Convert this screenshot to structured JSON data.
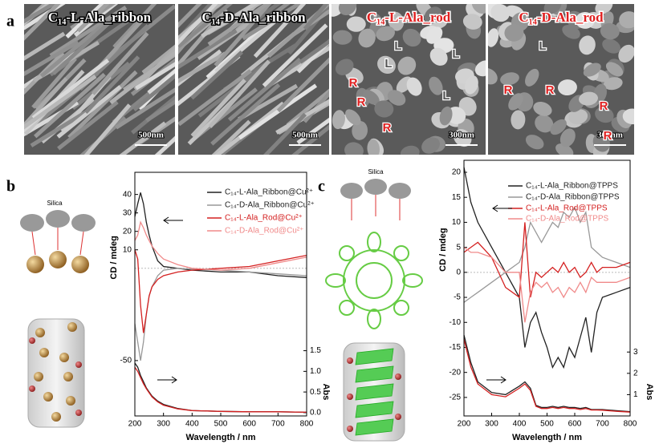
{
  "figure": {
    "panel_labels": [
      "a",
      "b",
      "c"
    ],
    "sem_images": [
      {
        "title": "C₁₄-L-Ala_ribbon",
        "scale": "500nm",
        "labels": []
      },
      {
        "title": "C₁₄-D-Ala_ribbon",
        "scale": "500nm",
        "labels": []
      },
      {
        "title": "C₁₄-L-Ala_rod",
        "scale": "300nm",
        "labels": [
          "L",
          "L",
          "L",
          "L",
          "R",
          "R",
          "R"
        ]
      },
      {
        "title": "C₁₄-D-Ala_rod",
        "scale": "300nm",
        "labels": [
          "L",
          "R",
          "R",
          "R",
          "R"
        ]
      }
    ],
    "silica_labels": [
      "Silica",
      "Silica"
    ]
  },
  "chart_data": [
    {
      "type": "line",
      "xlabel": "Wavelength / nm",
      "ylabel": "CD / mdeg",
      "y2label": "Abs",
      "x": [
        200,
        210,
        220,
        230,
        240,
        250,
        260,
        280,
        300,
        350,
        400,
        500,
        600,
        700,
        800
      ],
      "xlim": [
        200,
        800
      ],
      "xticks": [
        200,
        300,
        400,
        500,
        600,
        700,
        800
      ],
      "ylim": [
        -80,
        52
      ],
      "yticks": [
        40,
        30,
        20,
        10,
        -50
      ],
      "y2lim": [
        -0.08,
        5.82
      ],
      "y2ticks": [
        {
          "value": 0,
          "label": "0.0"
        },
        {
          "value": 0.5,
          "label": "0.5"
        },
        {
          "value": 1,
          "label": "1.0"
        },
        {
          "value": 1.5,
          "label": "1.5"
        }
      ],
      "legend": "upper right",
      "series": [
        {
          "name": "C₁₄-L-Ala_Ribbon@Cu²⁺",
          "color": "#222222",
          "values": [
            28,
            35,
            41,
            35,
            25,
            18,
            12,
            4,
            1,
            0,
            -1,
            -2,
            -2,
            -4,
            -5
          ]
        },
        {
          "name": "C₁₄-D-Ala_Ribbon@Cu²⁺",
          "color": "#999999",
          "values": [
            -30,
            -40,
            -50,
            -40,
            -25,
            -15,
            -10,
            -4,
            -1,
            0,
            -0.5,
            -1,
            -2,
            -3,
            -4
          ]
        },
        {
          "name": "C₁₄-L-Ala_Rod@Cu²⁺",
          "color": "#d42020",
          "values": [
            10,
            5,
            -20,
            -35,
            -25,
            -15,
            -10,
            -6,
            -4,
            -2,
            -1,
            0,
            1,
            4,
            7
          ]
        },
        {
          "name": "C₁₄-D-Ala_Rod@Cu²⁺",
          "color": "#f08a8a",
          "values": [
            15,
            18,
            25,
            22,
            18,
            15,
            12,
            8,
            5,
            2,
            0,
            -1,
            0,
            3,
            6
          ]
        },
        {
          "color": "#222222",
          "axis": "y2",
          "values": [
            1.2,
            1.1,
            0.9,
            0.75,
            0.6,
            0.5,
            0.4,
            0.28,
            0.2,
            0.1,
            0.05,
            0.03,
            0.02,
            0.02,
            0.01
          ]
        },
        {
          "color": "#d42020",
          "axis": "y2",
          "values": [
            1.1,
            1.0,
            0.85,
            0.7,
            0.58,
            0.48,
            0.38,
            0.26,
            0.18,
            0.09,
            0.05,
            0.03,
            0.02,
            0.02,
            0.01
          ]
        }
      ]
    },
    {
      "type": "line",
      "xlabel": "Wavelength / nm",
      "ylabel": "CD / mdeg",
      "y2label": "Abs",
      "x": [
        200,
        225,
        250,
        300,
        350,
        400,
        420,
        440,
        460,
        480,
        500,
        520,
        540,
        560,
        580,
        600,
        620,
        640,
        660,
        680,
        700,
        750,
        800
      ],
      "xlim": [
        200,
        800
      ],
      "xticks": [
        200,
        300,
        400,
        500,
        600,
        700,
        800
      ],
      "ylim": [
        -28.7,
        22.4
      ],
      "yticks": [
        20,
        15,
        10,
        5,
        0,
        -5,
        -10,
        -15,
        -20,
        -25
      ],
      "y2lim": [
        0,
        12
      ],
      "y2ticks": [
        1,
        2,
        3
      ],
      "legend": "upper right",
      "series": [
        {
          "name": "C₁₄-L-Ala_Ribbon@TPPS",
          "color": "#222222",
          "values": [
            21,
            14,
            10,
            5,
            0,
            -5,
            -15,
            -10,
            -8,
            -12,
            -15,
            -19,
            -17,
            -19,
            -15,
            -17,
            -13,
            -9,
            -16,
            -8,
            -5,
            -4,
            -3
          ]
        },
        {
          "name": "C₁₄-D-Ala_Ribbon@TPPS",
          "color": "#999999",
          "values": [
            -6,
            -5,
            -4,
            -2,
            0,
            2,
            5,
            10,
            8,
            6,
            8,
            10,
            9,
            12,
            11,
            13,
            10,
            12,
            5,
            4,
            3,
            2,
            1
          ]
        },
        {
          "name": "C₁₄-L-Ala_Rod@TPPS",
          "color": "#d42020",
          "values": [
            4,
            5,
            6,
            3,
            -3,
            -5,
            10,
            -5,
            0,
            -1,
            0,
            1,
            0,
            2,
            0,
            1,
            -1,
            0,
            2,
            0,
            1,
            1,
            2
          ]
        },
        {
          "name": "C₁₄-D-Ala_Rod@TPPS",
          "color": "#f08a8a",
          "values": [
            5,
            4,
            4,
            3,
            0,
            0,
            -10,
            -4,
            -2,
            -3,
            -2,
            -4,
            -3,
            -5,
            -3,
            -4,
            -2,
            -4,
            -1,
            -2,
            -2,
            -2,
            -1
          ]
        },
        {
          "color": "#222222",
          "axis": "y2",
          "values": [
            3.8,
            2.5,
            1.6,
            1.1,
            1.0,
            1.4,
            1.6,
            1.3,
            0.5,
            0.4,
            0.4,
            0.45,
            0.4,
            0.45,
            0.4,
            0.4,
            0.35,
            0.4,
            0.3,
            0.3,
            0.3,
            0.25,
            0.2
          ]
        },
        {
          "color": "#d42020",
          "axis": "y2",
          "values": [
            3.6,
            2.3,
            1.5,
            1.0,
            0.9,
            1.3,
            1.5,
            1.2,
            0.45,
            0.35,
            0.35,
            0.4,
            0.35,
            0.4,
            0.35,
            0.35,
            0.3,
            0.35,
            0.28,
            0.28,
            0.27,
            0.22,
            0.18
          ]
        }
      ]
    }
  ]
}
